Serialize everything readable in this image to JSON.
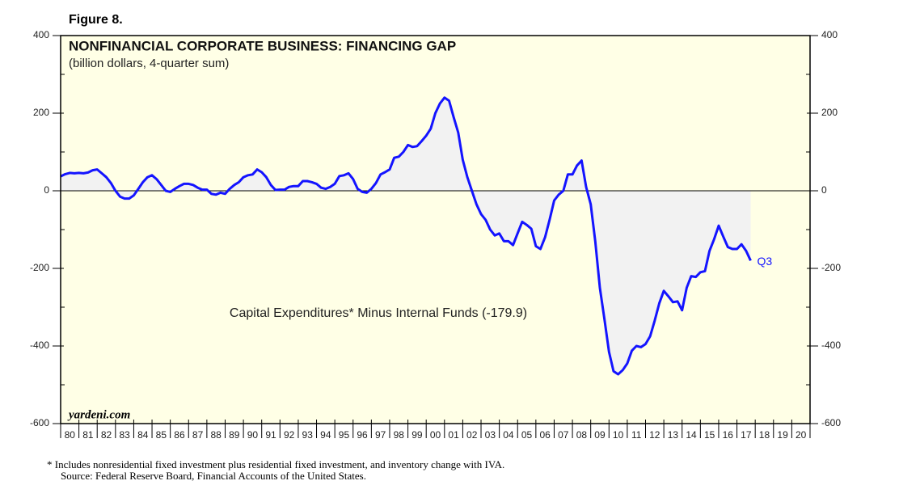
{
  "chart_data": {
    "type": "line",
    "figure_label": "Figure 8.",
    "title": "NONFINANCIAL CORPORATE BUSINESS: FINANCING GAP",
    "subtitle": "(billion dollars, 4-quarter sum)",
    "annotation": "Capital Expenditures* Minus Internal Funds (-179.9)",
    "end_label": "Q3",
    "watermark": "yardeni.com",
    "footnotes": [
      "*  Includes nonresidential fixed investment plus residential fixed investment, and inventory change with IVA.",
      "Source: Federal Reserve Board, Financial Accounts of the United States."
    ],
    "xlim": [
      1980,
      2021
    ],
    "ylim": [
      -600,
      400
    ],
    "yticks": [
      -600,
      -400,
      -200,
      0,
      200,
      400
    ],
    "yminor": [
      -500,
      -300,
      -100,
      100,
      300
    ],
    "xticks": [
      {
        "value": 1980.5,
        "label": "80"
      },
      {
        "value": 1981.5,
        "label": "81"
      },
      {
        "value": 1982.5,
        "label": "82"
      },
      {
        "value": 1983.5,
        "label": "83"
      },
      {
        "value": 1984.5,
        "label": "84"
      },
      {
        "value": 1985.5,
        "label": "85"
      },
      {
        "value": 1986.5,
        "label": "86"
      },
      {
        "value": 1987.5,
        "label": "87"
      },
      {
        "value": 1988.5,
        "label": "88"
      },
      {
        "value": 1989.5,
        "label": "89"
      },
      {
        "value": 1990.5,
        "label": "90"
      },
      {
        "value": 1991.5,
        "label": "91"
      },
      {
        "value": 1992.5,
        "label": "92"
      },
      {
        "value": 1993.5,
        "label": "93"
      },
      {
        "value": 1994.5,
        "label": "94"
      },
      {
        "value": 1995.5,
        "label": "95"
      },
      {
        "value": 1996.5,
        "label": "96"
      },
      {
        "value": 1997.5,
        "label": "97"
      },
      {
        "value": 1998.5,
        "label": "98"
      },
      {
        "value": 1999.5,
        "label": "99"
      },
      {
        "value": 2000.5,
        "label": "00"
      },
      {
        "value": 2001.5,
        "label": "01"
      },
      {
        "value": 2002.5,
        "label": "02"
      },
      {
        "value": 2003.5,
        "label": "03"
      },
      {
        "value": 2004.5,
        "label": "04"
      },
      {
        "value": 2005.5,
        "label": "05"
      },
      {
        "value": 2006.5,
        "label": "06"
      },
      {
        "value": 2007.5,
        "label": "07"
      },
      {
        "value": 2008.5,
        "label": "08"
      },
      {
        "value": 2009.5,
        "label": "09"
      },
      {
        "value": 2010.5,
        "label": "10"
      },
      {
        "value": 2011.5,
        "label": "11"
      },
      {
        "value": 2012.5,
        "label": "12"
      },
      {
        "value": 2013.5,
        "label": "13"
      },
      {
        "value": 2014.5,
        "label": "14"
      },
      {
        "value": 2015.5,
        "label": "15"
      },
      {
        "value": 2016.5,
        "label": "16"
      },
      {
        "value": 2017.5,
        "label": "17"
      },
      {
        "value": 2018.5,
        "label": "18"
      },
      {
        "value": 2019.5,
        "label": "19"
      },
      {
        "value": 2020.5,
        "label": "20"
      }
    ],
    "color": "#1414ff",
    "fill_color": "#f2f2f2",
    "background": "#ffffe6",
    "x": [
      1980,
      1980.25,
      1980.5,
      1980.75,
      1981,
      1981.25,
      1981.5,
      1981.75,
      1982,
      1982.25,
      1982.5,
      1982.75,
      1983,
      1983.25,
      1983.5,
      1983.75,
      1984,
      1984.25,
      1984.5,
      1984.75,
      1985,
      1985.25,
      1985.5,
      1985.75,
      1986,
      1986.25,
      1986.5,
      1986.75,
      1987,
      1987.25,
      1987.5,
      1987.75,
      1988,
      1988.25,
      1988.5,
      1988.75,
      1989,
      1989.25,
      1989.5,
      1989.75,
      1990,
      1990.25,
      1990.5,
      1990.75,
      1991,
      1991.25,
      1991.5,
      1991.75,
      1992,
      1992.25,
      1992.5,
      1992.75,
      1993,
      1993.25,
      1993.5,
      1993.75,
      1994,
      1994.25,
      1994.5,
      1994.75,
      1995,
      1995.25,
      1995.5,
      1995.75,
      1996,
      1996.25,
      1996.5,
      1996.75,
      1997,
      1997.25,
      1997.5,
      1997.75,
      1998,
      1998.25,
      1998.5,
      1998.75,
      1999,
      1999.25,
      1999.5,
      1999.75,
      2000,
      2000.25,
      2000.5,
      2000.75,
      2001,
      2001.25,
      2001.5,
      2001.75,
      2002,
      2002.25,
      2002.5,
      2002.75,
      2003,
      2003.25,
      2003.5,
      2003.75,
      2004,
      2004.25,
      2004.5,
      2004.75,
      2005,
      2005.25,
      2005.5,
      2005.75,
      2006,
      2006.25,
      2006.5,
      2006.75,
      2007,
      2007.25,
      2007.5,
      2007.75,
      2008,
      2008.25,
      2008.5,
      2008.75,
      2009,
      2009.25,
      2009.5,
      2009.75,
      2010,
      2010.25,
      2010.5,
      2010.75,
      2011,
      2011.25,
      2011.5,
      2011.75,
      2012,
      2012.25,
      2012.5,
      2012.75,
      2013,
      2013.25,
      2013.5,
      2013.75,
      2014,
      2014.25,
      2014.5,
      2014.75,
      2015,
      2015.25,
      2015.5,
      2015.75,
      2016,
      2016.25,
      2016.5,
      2016.75,
      2017,
      2017.25,
      2017.5,
      2017.75
    ],
    "values": [
      37,
      43,
      46,
      45,
      46,
      45,
      47,
      53,
      55,
      45,
      35,
      20,
      0,
      -15,
      -20,
      -20,
      -12,
      5,
      22,
      35,
      40,
      30,
      15,
      0,
      -3,
      5,
      12,
      18,
      18,
      15,
      8,
      3,
      3,
      -8,
      -10,
      -5,
      -8,
      5,
      15,
      22,
      35,
      40,
      42,
      55,
      48,
      35,
      15,
      2,
      3,
      3,
      10,
      12,
      12,
      25,
      25,
      22,
      18,
      8,
      5,
      10,
      18,
      38,
      40,
      45,
      30,
      5,
      -3,
      -5,
      5,
      20,
      42,
      48,
      55,
      85,
      88,
      100,
      118,
      113,
      115,
      128,
      142,
      160,
      200,
      225,
      240,
      232,
      190,
      150,
      80,
      35,
      0,
      -35,
      -60,
      -75,
      -100,
      -115,
      -110,
      -130,
      -130,
      -140,
      -110,
      -80,
      -88,
      -98,
      -143,
      -150,
      -120,
      -75,
      -25,
      -10,
      0,
      42,
      42,
      65,
      78,
      10,
      -35,
      -130,
      -250,
      -330,
      -415,
      -465,
      -473,
      -462,
      -445,
      -412,
      -400,
      -403,
      -395,
      -375,
      -335,
      -290,
      -258,
      -272,
      -287,
      -285,
      -308,
      -250,
      -220,
      -222,
      -210,
      -207,
      -155,
      -125,
      -90,
      -118,
      -145,
      -150,
      -150,
      -138,
      -155,
      -179.9
    ]
  }
}
